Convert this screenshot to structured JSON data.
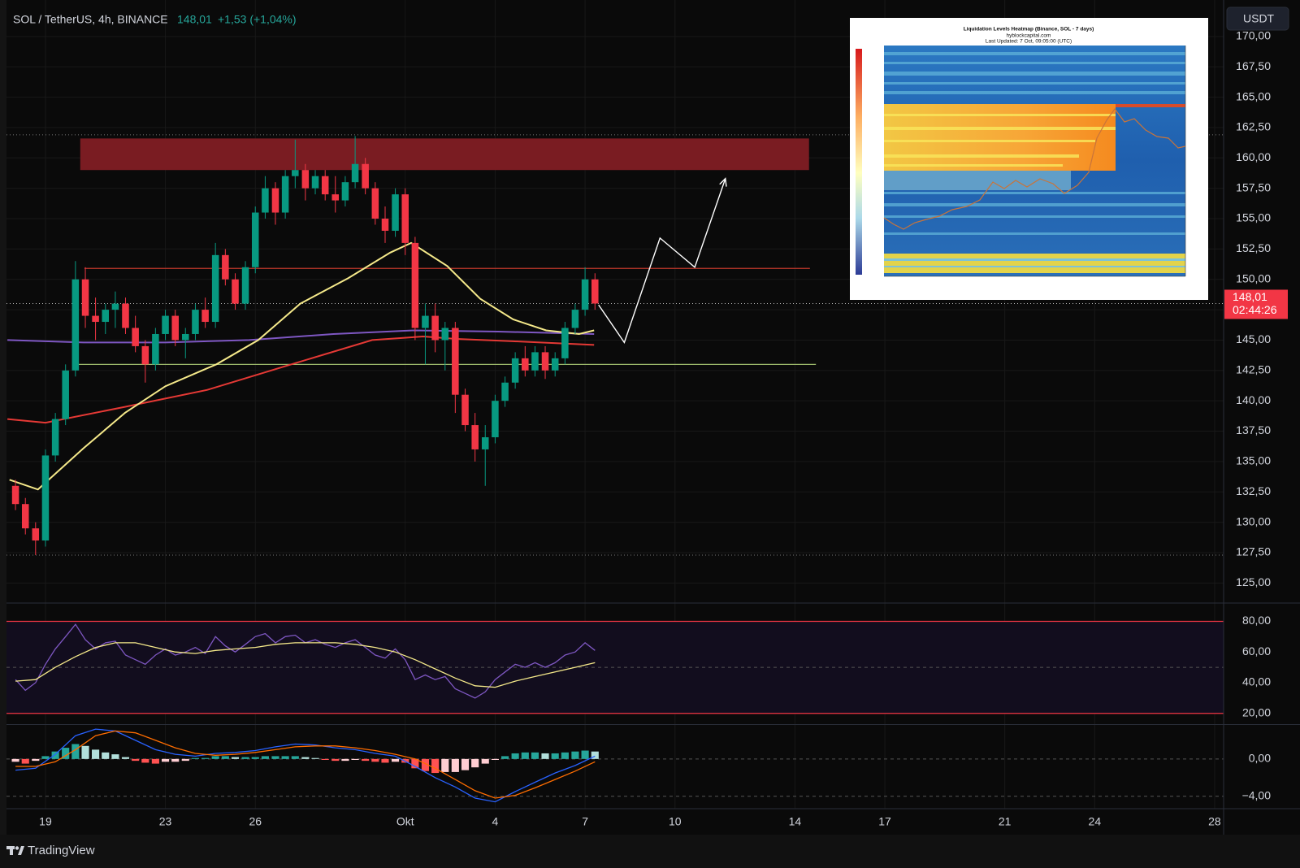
{
  "chart_data": [
    {
      "type": "candlestick",
      "title": "SOL / TetherUS, 4h, BINANCE",
      "change_label": "+1,53 (+1,04%)",
      "currency": "USDT",
      "countdown": "02:44:26",
      "last_price": {
        "value": 148.01,
        "label": "148,01"
      },
      "x": [
        -1,
        -0.67,
        -0.33,
        0,
        0.33,
        0.67,
        1,
        1.33,
        1.67,
        2,
        2.33,
        2.67,
        3,
        3.33,
        3.67,
        4,
        4.33,
        4.67,
        5,
        5.33,
        5.67,
        6,
        6.33,
        6.67,
        7,
        7.33,
        7.67,
        8,
        8.33,
        8.67,
        9,
        9.33,
        9.67,
        10,
        10.33,
        10.67,
        11,
        11.33,
        11.67,
        12,
        12.33,
        12.67,
        13,
        13.33,
        13.67,
        14,
        14.33,
        14.67,
        15,
        15.33,
        15.67,
        16,
        16.33,
        16.67,
        17,
        17.33,
        17.67,
        18,
        18.33
      ],
      "open": [
        133,
        131.5,
        129.5,
        128.5,
        135.5,
        138.5,
        142.5,
        150,
        147,
        146.5,
        147.5,
        148,
        146,
        144.5,
        143,
        145.5,
        147,
        145,
        145.5,
        147.5,
        146.5,
        152,
        150,
        148,
        151,
        155.5,
        157.5,
        155.5,
        158.5,
        159,
        157.5,
        158.5,
        157,
        156.5,
        158,
        159.5,
        157.5,
        155,
        154,
        157,
        153,
        146,
        147,
        145,
        146,
        140.5,
        138,
        136,
        137,
        140,
        141.5,
        143.5,
        142.5,
        144,
        142.5,
        143.5,
        146,
        147.5,
        150
      ],
      "high": [
        133.5,
        132,
        130,
        136,
        139,
        143,
        151.5,
        151,
        148.5,
        148,
        149,
        148.5,
        147,
        145,
        146,
        147.5,
        147.5,
        146,
        148,
        148.5,
        153,
        152.5,
        150.5,
        151.5,
        156,
        158.5,
        158,
        159,
        161.5,
        159.5,
        159,
        159,
        158.5,
        158.5,
        161.8,
        160,
        158,
        156,
        157.5,
        157.5,
        153.5,
        148,
        148,
        146.5,
        146.5,
        141,
        139,
        138,
        140.5,
        142,
        144,
        144.5,
        144.5,
        144.5,
        144,
        146.5,
        148,
        151,
        150.5
      ],
      "low": [
        131,
        129,
        127.3,
        128,
        135,
        138,
        142,
        146,
        145,
        145.5,
        146,
        145.5,
        144,
        141.5,
        142.5,
        145,
        144.5,
        143.5,
        145,
        146,
        146,
        149.5,
        147.5,
        147.5,
        150.5,
        155,
        154.5,
        155,
        157.5,
        156.5,
        157,
        156.5,
        155.5,
        156,
        157.5,
        157,
        154.5,
        153,
        153.5,
        152,
        145,
        143,
        144,
        142.5,
        139,
        137.5,
        135,
        133,
        136.5,
        139.5,
        141,
        142,
        142,
        141.8,
        142,
        143,
        145.5,
        147,
        147.5
      ],
      "close": [
        131.5,
        129.5,
        128.5,
        135.5,
        138.5,
        142.5,
        150,
        147,
        146.5,
        147.5,
        148,
        146,
        144.5,
        143,
        145.5,
        147,
        145,
        145.5,
        147.5,
        146.5,
        152,
        150,
        148,
        151,
        155.5,
        157.5,
        155.5,
        158.5,
        159,
        157.5,
        158.5,
        157,
        156.5,
        158,
        159.5,
        157.5,
        155,
        154,
        157,
        153,
        146,
        147,
        145,
        146,
        140.5,
        138,
        136,
        137,
        140,
        141.5,
        143.5,
        142.5,
        144,
        142.5,
        143.5,
        146,
        147.5,
        150,
        148.01
      ],
      "up_color": "#089981",
      "down_color": "#f23645",
      "lines": [
        {
          "color": "#7e57c2",
          "x": [
            -1.27,
            1.27,
            4,
            6.8,
            9.6,
            12.3,
            15.1,
            18.3
          ],
          "values": [
            145,
            144.8,
            144.8,
            145,
            145.5,
            145.8,
            145.7,
            145.5
          ]
        },
        {
          "color": "#e53935",
          "x": [
            -1.27,
            0,
            2.65,
            5.4,
            8.2,
            10.9,
            12.6,
            13.7,
            15.6,
            18.3
          ],
          "values": [
            138.5,
            138.2,
            139.5,
            140.9,
            143,
            145,
            145.3,
            145.1,
            144.9,
            144.6
          ]
        },
        {
          "color": "#f5e98a",
          "x": [
            -1.2,
            -0.25,
            1.27,
            2.65,
            4,
            5.7,
            7.1,
            8.5,
            10.1,
            11.5,
            12.2,
            13.4,
            14.5,
            15.6,
            16.7,
            17.8,
            18.3
          ],
          "values": [
            133.5,
            132.7,
            136.1,
            139,
            141.2,
            143,
            145,
            148,
            150.1,
            152.2,
            153,
            151.1,
            148.4,
            146.7,
            145.8,
            145.5,
            145.8
          ]
        }
      ],
      "zone": {
        "x": [
          1.16,
          25.47
        ],
        "y": [
          159,
          161.6
        ],
        "color": "#7a1c22"
      },
      "levels": [
        {
          "value": 150.9,
          "x": [
            1.3,
            25.5
          ],
          "color": "#c0392b"
        },
        {
          "value": 143,
          "x": [
            1.0,
            25.7
          ],
          "color": "#9cb86a"
        }
      ],
      "dotted_levels": [
        161.9,
        127.3
      ],
      "projection": {
        "x": [
          18.45,
          19.31,
          20.5,
          21.66,
          22.68
        ],
        "values": [
          147.9,
          144.8,
          153.4,
          151.0,
          158.3
        ],
        "color": "#ffffff"
      },
      "xlim": [
        -1.3,
        39.3
      ],
      "ylim": [
        123.35,
        173
      ],
      "xticks": [
        {
          "value": 0,
          "label": "19"
        },
        {
          "value": 4,
          "label": "23"
        },
        {
          "value": 7,
          "label": "26"
        },
        {
          "value": 12,
          "label": "Okt"
        },
        {
          "value": 15,
          "label": "4"
        },
        {
          "value": 18,
          "label": "7"
        },
        {
          "value": 21,
          "label": "10"
        },
        {
          "value": 25,
          "label": "14"
        },
        {
          "value": 28,
          "label": "17"
        },
        {
          "value": 32,
          "label": "21"
        },
        {
          "value": 35,
          "label": "24"
        },
        {
          "value": 39,
          "label": "28"
        }
      ],
      "yticks": [
        {
          "value": 125,
          "label": "125,00"
        },
        {
          "value": 127.5,
          "label": "127,50"
        },
        {
          "value": 130,
          "label": "130,00"
        },
        {
          "value": 132.5,
          "label": "132,50"
        },
        {
          "value": 135,
          "label": "135,00"
        },
        {
          "value": 137.5,
          "label": "137,50"
        },
        {
          "value": 140,
          "label": "140,00"
        },
        {
          "value": 142.5,
          "label": "142,50"
        },
        {
          "value": 145,
          "label": "145,00"
        },
        {
          "value": 147.5,
          "label": "147,50"
        },
        {
          "value": 150,
          "label": "150,00"
        },
        {
          "value": 152.5,
          "label": "152,50"
        },
        {
          "value": 155,
          "label": "155,00"
        },
        {
          "value": 157.5,
          "label": "157,50"
        },
        {
          "value": 160,
          "label": "160,00"
        },
        {
          "value": 162.5,
          "label": "162,50"
        },
        {
          "value": 165,
          "label": "165,00"
        },
        {
          "value": 167.5,
          "label": "167,50"
        },
        {
          "value": 170,
          "label": "170,00"
        }
      ],
      "grid": true
    },
    {
      "type": "line",
      "x": [
        -1,
        -0.67,
        -0.33,
        0,
        0.33,
        0.67,
        1,
        1.33,
        1.67,
        2,
        2.33,
        2.67,
        3,
        3.33,
        3.67,
        4,
        4.33,
        4.67,
        5,
        5.33,
        5.67,
        6,
        6.33,
        6.67,
        7,
        7.33,
        7.67,
        8,
        8.33,
        8.67,
        9,
        9.33,
        9.67,
        10,
        10.33,
        10.67,
        11,
        11.33,
        11.67,
        12,
        12.33,
        12.67,
        13,
        13.33,
        13.67,
        14,
        14.33,
        14.67,
        15,
        15.33,
        15.67,
        16,
        16.33,
        16.67,
        17,
        17.33,
        17.67,
        18,
        18.33
      ],
      "series": [
        {
          "color": "#7e57c2",
          "values": [
            42,
            35,
            40,
            52,
            62,
            70,
            78,
            68,
            62,
            66,
            67,
            58,
            55,
            52,
            58,
            62,
            58,
            60,
            63,
            59,
            70,
            64,
            60,
            65,
            70,
            72,
            66,
            70,
            71,
            66,
            68,
            65,
            63,
            66,
            68,
            63,
            58,
            56,
            62,
            55,
            42,
            45,
            42,
            44,
            36,
            33,
            30,
            34,
            42,
            47,
            52,
            50,
            53,
            50,
            53,
            58,
            60,
            66,
            61
          ]
        },
        {
          "color": "#f5e98a",
          "x": [
            -1,
            -0.33,
            0.33,
            1,
            1.67,
            2.33,
            3,
            3.67,
            4.33,
            5,
            5.67,
            6.33,
            7,
            7.67,
            8.33,
            9,
            9.67,
            10.33,
            11,
            11.67,
            12.33,
            13,
            13.67,
            14.33,
            15,
            15.67,
            16.33,
            17,
            17.67,
            18.33
          ],
          "values": [
            41,
            42,
            50,
            57,
            63,
            66,
            66,
            63,
            60,
            59,
            61,
            62,
            63,
            65,
            66,
            66,
            66,
            65,
            63,
            60,
            55,
            49,
            43,
            38,
            37,
            41,
            44,
            47,
            50,
            53
          ]
        }
      ],
      "band": [
        20,
        80
      ],
      "band_color": "#f23645",
      "band_fill": "#120d1e",
      "midline": 50,
      "ylim": [
        13.5,
        91.9
      ],
      "yticks": [
        {
          "value": 20,
          "label": "20,00"
        },
        {
          "value": 40,
          "label": "40,00"
        },
        {
          "value": 60,
          "label": "60,00"
        },
        {
          "value": 80,
          "label": "80,00"
        }
      ],
      "grid": true
    },
    {
      "type": "macd",
      "x": [
        -1,
        -0.67,
        -0.33,
        0,
        0.33,
        0.67,
        1,
        1.33,
        1.67,
        2,
        2.33,
        2.67,
        3,
        3.33,
        3.67,
        4,
        4.33,
        4.67,
        5,
        5.33,
        5.67,
        6,
        6.33,
        6.67,
        7,
        7.33,
        7.67,
        8,
        8.33,
        8.67,
        9,
        9.33,
        9.67,
        10,
        10.33,
        10.67,
        11,
        11.33,
        11.67,
        12,
        12.33,
        12.67,
        13,
        13.33,
        13.67,
        14,
        14.33,
        14.67,
        15,
        15.33,
        15.67,
        16,
        16.33,
        16.67,
        17,
        17.33,
        17.67,
        18,
        18.33
      ],
      "histogram": [
        -0.3,
        -0.5,
        -0.2,
        0.3,
        0.8,
        1.2,
        1.6,
        1.4,
        1.0,
        0.7,
        0.5,
        0.2,
        -0.2,
        -0.4,
        -0.5,
        -0.3,
        -0.3,
        -0.2,
        0.1,
        0.1,
        0.3,
        0.3,
        0.2,
        0.2,
        0.2,
        0.3,
        0.3,
        0.3,
        0.3,
        0.2,
        0.1,
        -0.1,
        -0.2,
        -0.2,
        -0.1,
        -0.2,
        -0.3,
        -0.4,
        -0.3,
        -0.4,
        -1.0,
        -1.3,
        -1.5,
        -1.4,
        -1.4,
        -1.2,
        -0.9,
        -0.5,
        -0.1,
        0.3,
        0.6,
        0.7,
        0.7,
        0.6,
        0.6,
        0.7,
        0.8,
        0.9,
        0.8
      ],
      "hist_colors": [
        "#26a69a",
        "#b2dfdb",
        "#ffcdd2",
        "#ff5252"
      ],
      "series": [
        {
          "color": "#2962ff",
          "x": [
            -1,
            -0.33,
            0.33,
            1,
            1.67,
            2.33,
            3,
            3.67,
            4.33,
            5,
            5.67,
            6.33,
            7,
            7.67,
            8.33,
            9,
            9.67,
            10.33,
            11,
            11.67,
            12.33,
            13,
            13.67,
            14.33,
            15,
            15.67,
            16.33,
            17,
            17.67,
            18.33
          ],
          "values": [
            -1.2,
            -1.0,
            0.5,
            2.5,
            3.2,
            3.0,
            2.0,
            1.0,
            0.5,
            0.3,
            0.6,
            0.7,
            0.9,
            1.3,
            1.6,
            1.5,
            1.2,
            1.0,
            0.6,
            0.3,
            -0.8,
            -2.0,
            -3.0,
            -4.2,
            -4.6,
            -3.5,
            -2.5,
            -1.5,
            -0.7,
            0.3
          ]
        },
        {
          "color": "#ff6d00",
          "x": [
            -1,
            -0.33,
            0.33,
            1,
            1.67,
            2.33,
            3,
            3.67,
            4.33,
            5,
            5.67,
            6.33,
            7,
            7.67,
            8.33,
            9,
            9.67,
            10.33,
            11,
            11.67,
            12.33,
            13,
            13.67,
            14.33,
            15,
            15.67,
            16.33,
            17,
            17.67,
            18.33
          ],
          "values": [
            -0.8,
            -0.8,
            -0.3,
            1.0,
            2.5,
            3.0,
            2.8,
            2.0,
            1.2,
            0.6,
            0.4,
            0.5,
            0.7,
            1.0,
            1.3,
            1.4,
            1.4,
            1.2,
            0.9,
            0.5,
            0.0,
            -1.0,
            -2.2,
            -3.4,
            -4.2,
            -3.9,
            -3.1,
            -2.2,
            -1.3,
            -0.3
          ]
        }
      ],
      "ylim": [
        -5.33,
        3.56
      ],
      "yticks": [
        {
          "value": -4,
          "label": "−4,00"
        },
        {
          "value": 0,
          "label": "0,00"
        }
      ],
      "grid": true
    }
  ],
  "inset": {
    "title": "Liquidation Levels Heatmap (Binance, SOL - 7 days)",
    "source": "hyblockcapital.com",
    "updated": "Last Updated: 7 Oct, 09:05:00 (UTC)"
  },
  "footer": {
    "brand": "TradingView"
  }
}
